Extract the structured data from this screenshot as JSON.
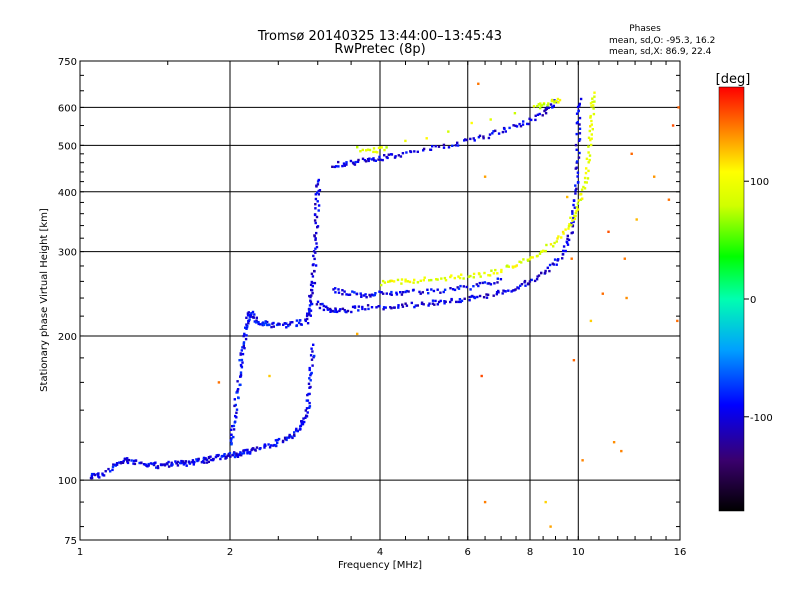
{
  "chart_data": {
    "type": "scatter",
    "title": "Tromsø 20140325 13:44:00–13:45:43",
    "subtitle": "RwPretec (8p)",
    "stats": {
      "heading": "Phases",
      "line_o": "mean, sd,O: -95.3, 16.2",
      "line_x": "mean, sd,X:  86.9, 22.4"
    },
    "xlabel": "Frequency [MHz]",
    "ylabel": "Stationary phase Virtual Height [km]",
    "x_scale": "log",
    "y_scale": "log",
    "xlim": [
      1,
      16
    ],
    "ylim": [
      75,
      750
    ],
    "x_ticks": [
      1,
      2,
      4,
      6,
      8,
      10,
      16
    ],
    "x_tick_labels": [
      "1",
      "2",
      "4",
      "6",
      "8",
      "10",
      "16"
    ],
    "y_ticks": [
      75,
      100,
      200,
      300,
      400,
      500,
      600,
      750
    ],
    "y_tick_labels": [
      "75",
      "100",
      "200",
      "300",
      "400",
      "500",
      "600",
      "750"
    ],
    "grid_x": [
      2,
      4,
      6,
      8,
      10
    ],
    "grid_y": [
      100,
      200,
      300,
      400,
      500,
      600
    ],
    "grid": true,
    "colorbar": {
      "label": "[deg]",
      "range": [
        -180,
        180
      ],
      "ticks": [
        100,
        0,
        -100
      ],
      "tick_labels": [
        "100",
        "0",
        "-100"
      ]
    },
    "series": [
      {
        "trace": "o-mode-E-layer",
        "phase_deg": -95,
        "points": [
          [
            1.05,
            102
          ],
          [
            1.08,
            102
          ],
          [
            1.12,
            103
          ],
          [
            1.18,
            108
          ],
          [
            1.22,
            110
          ],
          [
            1.25,
            110
          ],
          [
            1.3,
            109
          ],
          [
            1.35,
            108
          ],
          [
            1.4,
            108
          ],
          [
            1.45,
            107
          ],
          [
            1.5,
            108
          ],
          [
            1.55,
            108
          ],
          [
            1.6,
            109
          ],
          [
            1.65,
            108
          ],
          [
            1.7,
            109
          ],
          [
            1.75,
            110
          ],
          [
            1.8,
            110
          ],
          [
            1.85,
            111
          ],
          [
            1.9,
            112
          ],
          [
            1.95,
            112
          ],
          [
            2.0,
            113
          ],
          [
            2.05,
            113
          ],
          [
            2.1,
            114
          ],
          [
            2.15,
            115
          ],
          [
            2.2,
            115
          ],
          [
            2.3,
            116
          ],
          [
            2.4,
            118
          ],
          [
            2.5,
            120
          ],
          [
            2.6,
            122
          ],
          [
            2.7,
            124
          ],
          [
            2.75,
            128
          ],
          [
            2.8,
            132
          ],
          [
            2.85,
            138
          ],
          [
            2.88,
            148
          ],
          [
            2.9,
            160
          ],
          [
            2.92,
            175
          ],
          [
            2.94,
            190
          ]
        ]
      },
      {
        "trace": "o-mode-E-cusp",
        "phase_deg": -90,
        "points": [
          [
            2.0,
            118
          ],
          [
            2.02,
            125
          ],
          [
            2.04,
            135
          ],
          [
            2.06,
            148
          ],
          [
            2.08,
            160
          ],
          [
            2.1,
            172
          ],
          [
            2.12,
            185
          ],
          [
            2.14,
            198
          ],
          [
            2.16,
            210
          ],
          [
            2.18,
            218
          ],
          [
            2.2,
            224
          ],
          [
            2.25,
            216
          ],
          [
            2.3,
            213
          ],
          [
            2.35,
            212
          ],
          [
            2.4,
            211
          ],
          [
            2.5,
            210
          ],
          [
            2.6,
            211
          ],
          [
            2.7,
            212
          ],
          [
            2.8,
            214
          ]
        ]
      },
      {
        "trace": "o-mode-F-spike",
        "phase_deg": -100,
        "points": [
          [
            2.85,
            215
          ],
          [
            2.88,
            222
          ],
          [
            2.9,
            232
          ],
          [
            2.92,
            245
          ],
          [
            2.94,
            262
          ],
          [
            2.96,
            285
          ],
          [
            2.97,
            310
          ],
          [
            2.98,
            340
          ],
          [
            2.99,
            370
          ],
          [
            3.0,
            400
          ],
          [
            3.01,
            420
          ]
        ]
      },
      {
        "trace": "o-mode-F-layer",
        "phase_deg": -100,
        "points": [
          [
            3.0,
            235
          ],
          [
            3.1,
            228
          ],
          [
            3.2,
            226
          ],
          [
            3.3,
            226
          ],
          [
            3.5,
            227
          ],
          [
            3.7,
            229
          ],
          [
            4.0,
            230
          ],
          [
            4.3,
            231
          ],
          [
            4.6,
            232
          ],
          [
            5.0,
            234
          ],
          [
            5.3,
            235
          ],
          [
            5.6,
            237
          ],
          [
            6.0,
            239
          ],
          [
            6.3,
            241
          ],
          [
            6.8,
            244
          ],
          [
            7.2,
            248
          ],
          [
            7.6,
            253
          ],
          [
            8.0,
            260
          ],
          [
            8.4,
            268
          ],
          [
            8.8,
            278
          ],
          [
            9.2,
            292
          ],
          [
            9.5,
            310
          ],
          [
            9.7,
            335
          ],
          [
            9.8,
            370
          ],
          [
            9.9,
            410
          ],
          [
            9.95,
            460
          ],
          [
            10.0,
            520
          ],
          [
            10.02,
            570
          ],
          [
            10.04,
            620
          ]
        ]
      },
      {
        "trace": "o-mode-F-upper",
        "phase_deg": -95,
        "points": [
          [
            3.2,
            250
          ],
          [
            3.4,
            246
          ],
          [
            3.6,
            244
          ],
          [
            3.8,
            243
          ],
          [
            4.0,
            245
          ],
          [
            4.3,
            246
          ],
          [
            4.6,
            247
          ],
          [
            5.0,
            248
          ],
          [
            5.5,
            250
          ],
          [
            6.0,
            252
          ],
          [
            6.5,
            256
          ],
          [
            7.0,
            262
          ]
        ]
      },
      {
        "trace": "x-mode-F-layer",
        "phase_deg": 95,
        "points": [
          [
            4.0,
            258
          ],
          [
            4.3,
            259
          ],
          [
            4.6,
            260
          ],
          [
            5.0,
            262
          ],
          [
            5.5,
            264
          ],
          [
            6.0,
            266
          ],
          [
            6.5,
            269
          ],
          [
            7.0,
            274
          ],
          [
            7.5,
            282
          ],
          [
            8.0,
            290
          ],
          [
            8.5,
            300
          ],
          [
            9.0,
            315
          ],
          [
            9.5,
            335
          ],
          [
            9.8,
            355
          ],
          [
            10.1,
            380
          ],
          [
            10.3,
            410
          ],
          [
            10.45,
            450
          ],
          [
            10.55,
            500
          ],
          [
            10.62,
            550
          ],
          [
            10.68,
            600
          ],
          [
            10.72,
            640
          ]
        ]
      },
      {
        "trace": "o-mode-F2-echo",
        "phase_deg": -100,
        "points": [
          [
            3.2,
            455
          ],
          [
            3.4,
            458
          ],
          [
            3.6,
            462
          ],
          [
            3.8,
            466
          ],
          [
            4.0,
            470
          ],
          [
            4.2,
            474
          ],
          [
            4.5,
            480
          ],
          [
            5.0,
            490
          ],
          [
            5.5,
            500
          ],
          [
            6.0,
            510
          ],
          [
            6.5,
            522
          ],
          [
            7.0,
            535
          ],
          [
            7.5,
            548
          ],
          [
            8.0,
            562
          ],
          [
            8.5,
            585
          ],
          [
            8.8,
            605
          ],
          [
            9.0,
            620
          ]
        ]
      },
      {
        "trace": "x-mode-F2-echo",
        "phase_deg": 90,
        "points": [
          [
            3.6,
            490
          ],
          [
            3.9,
            488
          ],
          [
            4.1,
            492
          ],
          [
            8.2,
            600
          ],
          [
            8.5,
            610
          ],
          [
            8.9,
            618
          ],
          [
            9.2,
            622
          ]
        ]
      },
      {
        "trace": "scattered-echoes",
        "phase_deg": 140,
        "points": [
          [
            1.9,
            160
          ],
          [
            2.4,
            165
          ],
          [
            3.6,
            202
          ],
          [
            6.3,
            672
          ],
          [
            6.5,
            90
          ],
          [
            6.4,
            165
          ],
          [
            6.5,
            430
          ],
          [
            8.6,
            90
          ],
          [
            8.8,
            80
          ],
          [
            9.5,
            390
          ],
          [
            9.7,
            290
          ],
          [
            9.8,
            178
          ],
          [
            10.2,
            110
          ],
          [
            10.6,
            215
          ],
          [
            11.2,
            245
          ],
          [
            11.5,
            330
          ],
          [
            11.8,
            120
          ],
          [
            12.2,
            115
          ],
          [
            12.4,
            290
          ],
          [
            12.5,
            240
          ],
          [
            12.8,
            480
          ],
          [
            13.1,
            350
          ],
          [
            14.2,
            430
          ],
          [
            15.2,
            385
          ],
          [
            15.5,
            550
          ],
          [
            15.8,
            215
          ],
          [
            15.9,
            600
          ]
        ]
      }
    ]
  }
}
